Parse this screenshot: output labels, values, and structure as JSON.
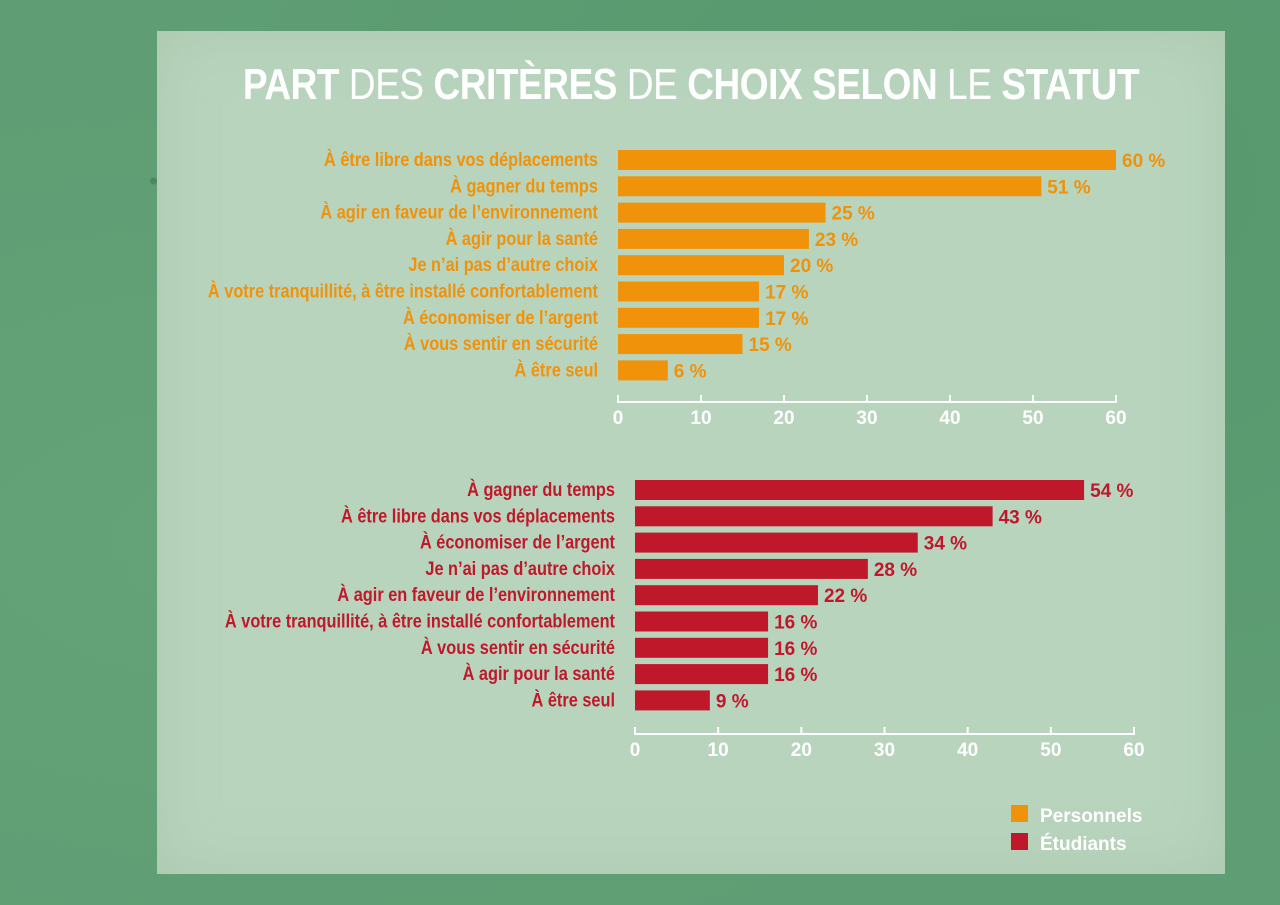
{
  "title_parts": [
    {
      "text": "PART",
      "bold": true
    },
    {
      "text": " DES ",
      "bold": false
    },
    {
      "text": "CRITÈRES",
      "bold": true
    },
    {
      "text": " DE ",
      "bold": false
    },
    {
      "text": "CHOIX SELON",
      "bold": true
    },
    {
      "text": " LE ",
      "bold": false
    },
    {
      "text": "STATUT",
      "bold": true
    }
  ],
  "colors": {
    "personnels": "#f0920a",
    "etudiants": "#c0182b",
    "axis": "#ffffff",
    "background": "#5f9e74",
    "panel": "#b8d4bd"
  },
  "legend": [
    {
      "label": "Personnels",
      "color": "#f0920a"
    },
    {
      "label": "Étudiants",
      "color": "#c0182b"
    }
  ],
  "chart_data": [
    {
      "type": "bar",
      "orientation": "horizontal",
      "series_name": "Personnels",
      "color": "#f0920a",
      "categories": [
        "À être libre dans vos déplacements",
        "À gagner du temps",
        "À agir en faveur de l’environnement",
        "À agir pour la santé",
        "Je n’ai pas d’autre choix",
        "À votre tranquillité, à être installé confortablement",
        "À économiser de l’argent",
        "À vous sentir en sécurité",
        "À être seul"
      ],
      "values": [
        60,
        51,
        25,
        23,
        20,
        17,
        17,
        15,
        6
      ],
      "value_labels": [
        "60 %",
        "51 %",
        "25 %",
        "23 %",
        "20 %",
        "17 %",
        "17 %",
        "15 %",
        "6 %"
      ],
      "xlim": [
        0,
        60
      ],
      "xticks": [
        0,
        10,
        20,
        30,
        40,
        50,
        60
      ]
    },
    {
      "type": "bar",
      "orientation": "horizontal",
      "series_name": "Étudiants",
      "color": "#c0182b",
      "categories": [
        "À gagner du temps",
        "À être libre dans vos déplacements",
        "À économiser de l’argent",
        "Je n’ai pas d’autre choix",
        "À agir en faveur de l’environnement",
        "À votre tranquillité, à être installé confortablement",
        "À vous sentir en sécurité",
        "À agir pour la santé",
        "À être seul"
      ],
      "values": [
        54,
        43,
        34,
        28,
        22,
        16,
        16,
        16,
        9
      ],
      "value_labels": [
        "54 %",
        "43 %",
        "34 %",
        "28 %",
        "22 %",
        "16 %",
        "16 %",
        "16 %",
        "9 %"
      ],
      "xlim": [
        0,
        60
      ],
      "xticks": [
        0,
        10,
        20,
        30,
        40,
        50,
        60
      ]
    }
  ]
}
